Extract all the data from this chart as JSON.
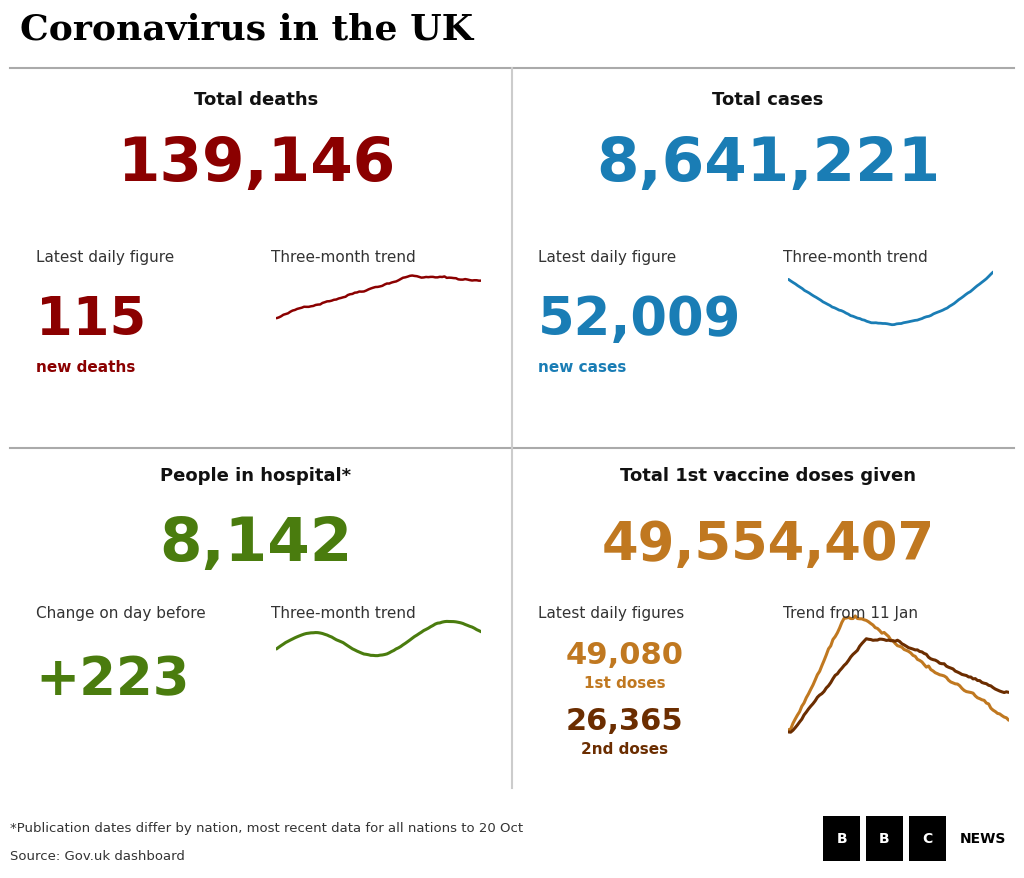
{
  "title": "Coronavirus in the UK",
  "bg_color": "#ffffff",
  "title_color": "#000000",
  "deaths_label": "Total deaths",
  "deaths_total": "139,146",
  "deaths_total_color": "#8b0000",
  "deaths_daily_label": "Latest daily figure",
  "deaths_trend_label": "Three-month trend",
  "deaths_daily_value": "115",
  "deaths_daily_sub": "new deaths",
  "deaths_value_color": "#8b0000",
  "cases_label": "Total cases",
  "cases_total": "8,641,221",
  "cases_total_color": "#1a7db5",
  "cases_daily_label": "Latest daily figure",
  "cases_trend_label": "Three-month trend",
  "cases_daily_value": "52,009",
  "cases_daily_sub": "new cases",
  "cases_value_color": "#1a7db5",
  "hospital_label": "People in hospital*",
  "hospital_total": "8,142",
  "hospital_total_color": "#4a7c0e",
  "hospital_change_label": "Change on day before",
  "hospital_trend_label": "Three-month trend",
  "hospital_change_value": "+223",
  "hospital_value_color": "#4a7c0e",
  "vaccine_label": "Total 1st vaccine doses given",
  "vaccine_total": "49,554,407",
  "vaccine_total_color": "#c07820",
  "vaccine_daily_label": "Latest daily figures",
  "vaccine_trend_label": "Trend from 11 Jan",
  "vaccine_1st_value": "49,080",
  "vaccine_1st_sub": "1st doses",
  "vaccine_2nd_value": "26,365",
  "vaccine_2nd_sub": "2nd doses",
  "vaccine_value_color": "#c07820",
  "vaccine_2nd_color": "#6b2d00",
  "footnote": "*Publication dates differ by nation, most recent data for all nations to 20 Oct",
  "source": "Source: Gov.uk dashboard",
  "title_fontsize": 26,
  "label_fontsize": 13,
  "sublabel_fontsize": 11,
  "total_fontsize": 44,
  "daily_fontsize": 38,
  "dose_fontsize": 22
}
